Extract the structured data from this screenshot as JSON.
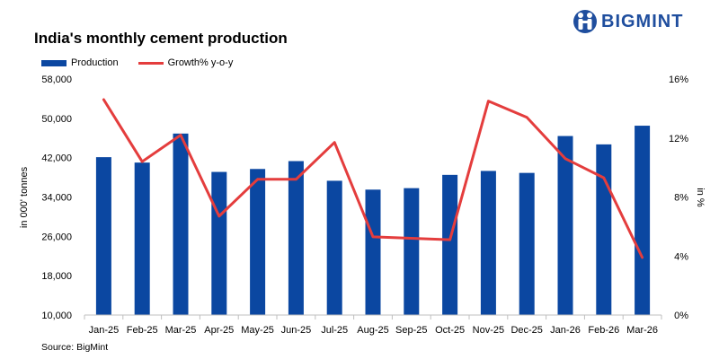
{
  "brand": {
    "name": "BIGMINT"
  },
  "source": "Source: BigMint",
  "colors": {
    "production": "#0b47a1",
    "growth": "#e43d3d",
    "brand": "#1f4e9e"
  },
  "chart_data": {
    "type": "bar",
    "title": "India's monthly cement production",
    "categories": [
      "Jan-25",
      "Feb-25",
      "Mar-25",
      "Apr-25",
      "May-25",
      "Jun-25",
      "Jul-25",
      "Aug-25",
      "Sep-25",
      "Oct-25",
      "Nov-25",
      "Dec-25",
      "Jan-26",
      "Feb-26",
      "Mar-26"
    ],
    "series": [
      {
        "name": "Production",
        "type": "bar",
        "axis": "left",
        "values": [
          42100,
          41000,
          46900,
          39100,
          39700,
          41300,
          37300,
          35500,
          35800,
          38500,
          39300,
          38900,
          46400,
          44700,
          48500
        ]
      },
      {
        "name": "Growth% y-o-y",
        "type": "line",
        "axis": "right",
        "values": [
          14.6,
          10.4,
          12.2,
          6.7,
          9.2,
          9.2,
          11.7,
          5.3,
          5.2,
          5.1,
          14.5,
          13.4,
          10.6,
          9.3,
          3.9
        ]
      }
    ],
    "ylabel": "in 000' tonnes",
    "y2label": "in %",
    "ylim": [
      10000,
      58000
    ],
    "yticks": [
      "10,000",
      "18,000",
      "26,000",
      "34,000",
      "42,000",
      "50,000",
      "58,000"
    ],
    "y2lim": [
      0,
      16
    ],
    "y2ticks": [
      "0%",
      "4%",
      "8%",
      "12%",
      "16%"
    ],
    "legend": "top-left",
    "grid": false
  }
}
